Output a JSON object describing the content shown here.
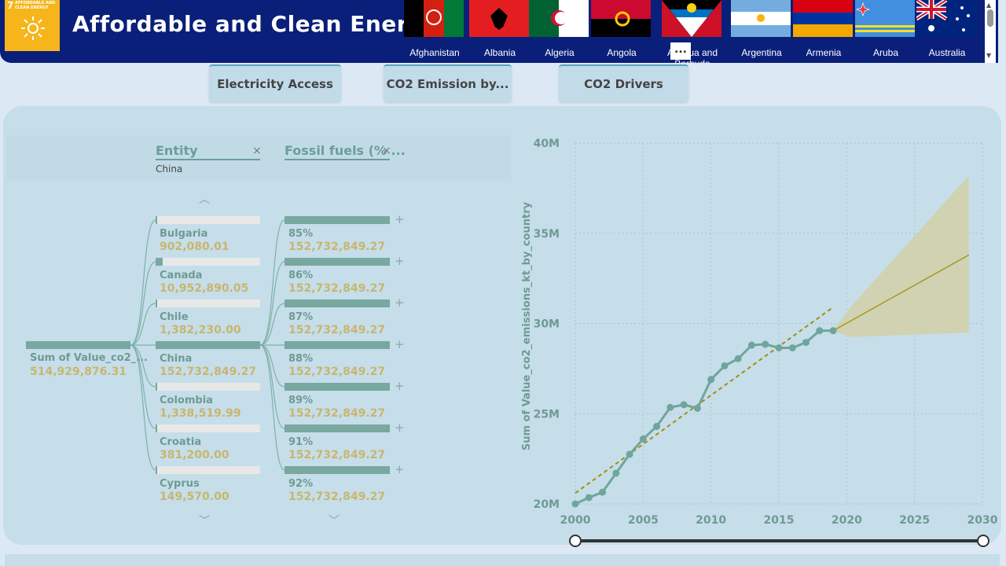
{
  "header": {
    "title": "Affordable and Clean Energy",
    "sdg_number": "7",
    "sdg_text_line1": "AFFORDABLE AND",
    "sdg_text_line2": "CLEAN ENERGY",
    "more_label": "...",
    "countries": [
      "Afghanistan",
      "Albania",
      "Algeria",
      "Angola",
      "Antigua and Barbuda",
      "Argentina",
      "Armenia",
      "Aruba",
      "Australia"
    ]
  },
  "tabs": [
    {
      "label": "Electricity Access"
    },
    {
      "label": "CO2 Emission by..."
    },
    {
      "label": "CO2 Drivers"
    }
  ],
  "tree": {
    "col1_title": "Entity",
    "col1_selected": "China",
    "col2_title": "Fossil fuels (% ...",
    "close_label": "×",
    "root": {
      "label": "Sum of Value_co2_...",
      "value": "514,929,876.31"
    },
    "entities": [
      {
        "label": "Bulgaria",
        "value": "902,080.01",
        "share": 0.006
      },
      {
        "label": "Canada",
        "value": "10,952,890.05",
        "share": 0.07
      },
      {
        "label": "Chile",
        "value": "1,382,230.00",
        "share": 0.009
      },
      {
        "label": "China",
        "value": "152,732,849.27",
        "share": 1.0
      },
      {
        "label": "Colombia",
        "value": "1,338,519.99",
        "share": 0.009
      },
      {
        "label": "Croatia",
        "value": "381,200.00",
        "share": 0.003
      },
      {
        "label": "Cyprus",
        "value": "149,570.00",
        "share": 0.001
      }
    ],
    "fossil": [
      {
        "label": "85%",
        "value": "152,732,849.27"
      },
      {
        "label": "86%",
        "value": "152,732,849.27"
      },
      {
        "label": "87%",
        "value": "152,732,849.27"
      },
      {
        "label": "88%",
        "value": "152,732,849.27"
      },
      {
        "label": "89%",
        "value": "152,732,849.27"
      },
      {
        "label": "91%",
        "value": "152,732,849.27"
      },
      {
        "label": "92%",
        "value": "152,732,849.27"
      }
    ],
    "plus_label": "+"
  },
  "chart_data": {
    "type": "line",
    "ylabel": "Sum of Value_co2_emissions_kt_by_country",
    "xlabel": "",
    "x_ticks": [
      "2000",
      "2005",
      "2010",
      "2015",
      "2020",
      "2025",
      "2030"
    ],
    "y_ticks": [
      "20M",
      "25M",
      "30M",
      "35M",
      "40M"
    ],
    "xlim": [
      2000,
      2030
    ],
    "ylim": [
      20000000,
      40000000
    ],
    "series": [
      {
        "x": [
          2000,
          2001,
          2002,
          2003,
          2004,
          2005,
          2006,
          2007,
          2008,
          2009,
          2010,
          2011,
          2012,
          2013,
          2014,
          2015,
          2016,
          2017,
          2018,
          2019
        ],
        "values": [
          20000000,
          20350000,
          20650000,
          21700000,
          22750000,
          23600000,
          24300000,
          25350000,
          25500000,
          25300000,
          26900000,
          27650000,
          28050000,
          28800000,
          28850000,
          28650000,
          28650000,
          28950000,
          29600000,
          29600000
        ]
      }
    ],
    "trend": {
      "x": [
        2000,
        2019
      ],
      "values": [
        20600000,
        30900000
      ]
    },
    "forecast": {
      "x": [
        2019,
        2029
      ],
      "values": [
        29600000,
        33800000
      ],
      "upper": [
        29600000,
        38200000
      ],
      "lower": [
        29600000,
        29500000
      ]
    },
    "colors": {
      "line": "#6fa59c",
      "trend": "#a08f10",
      "forecast": "#a89a22",
      "band": "#d2d0a8"
    },
    "grid": true,
    "legend": "none"
  }
}
